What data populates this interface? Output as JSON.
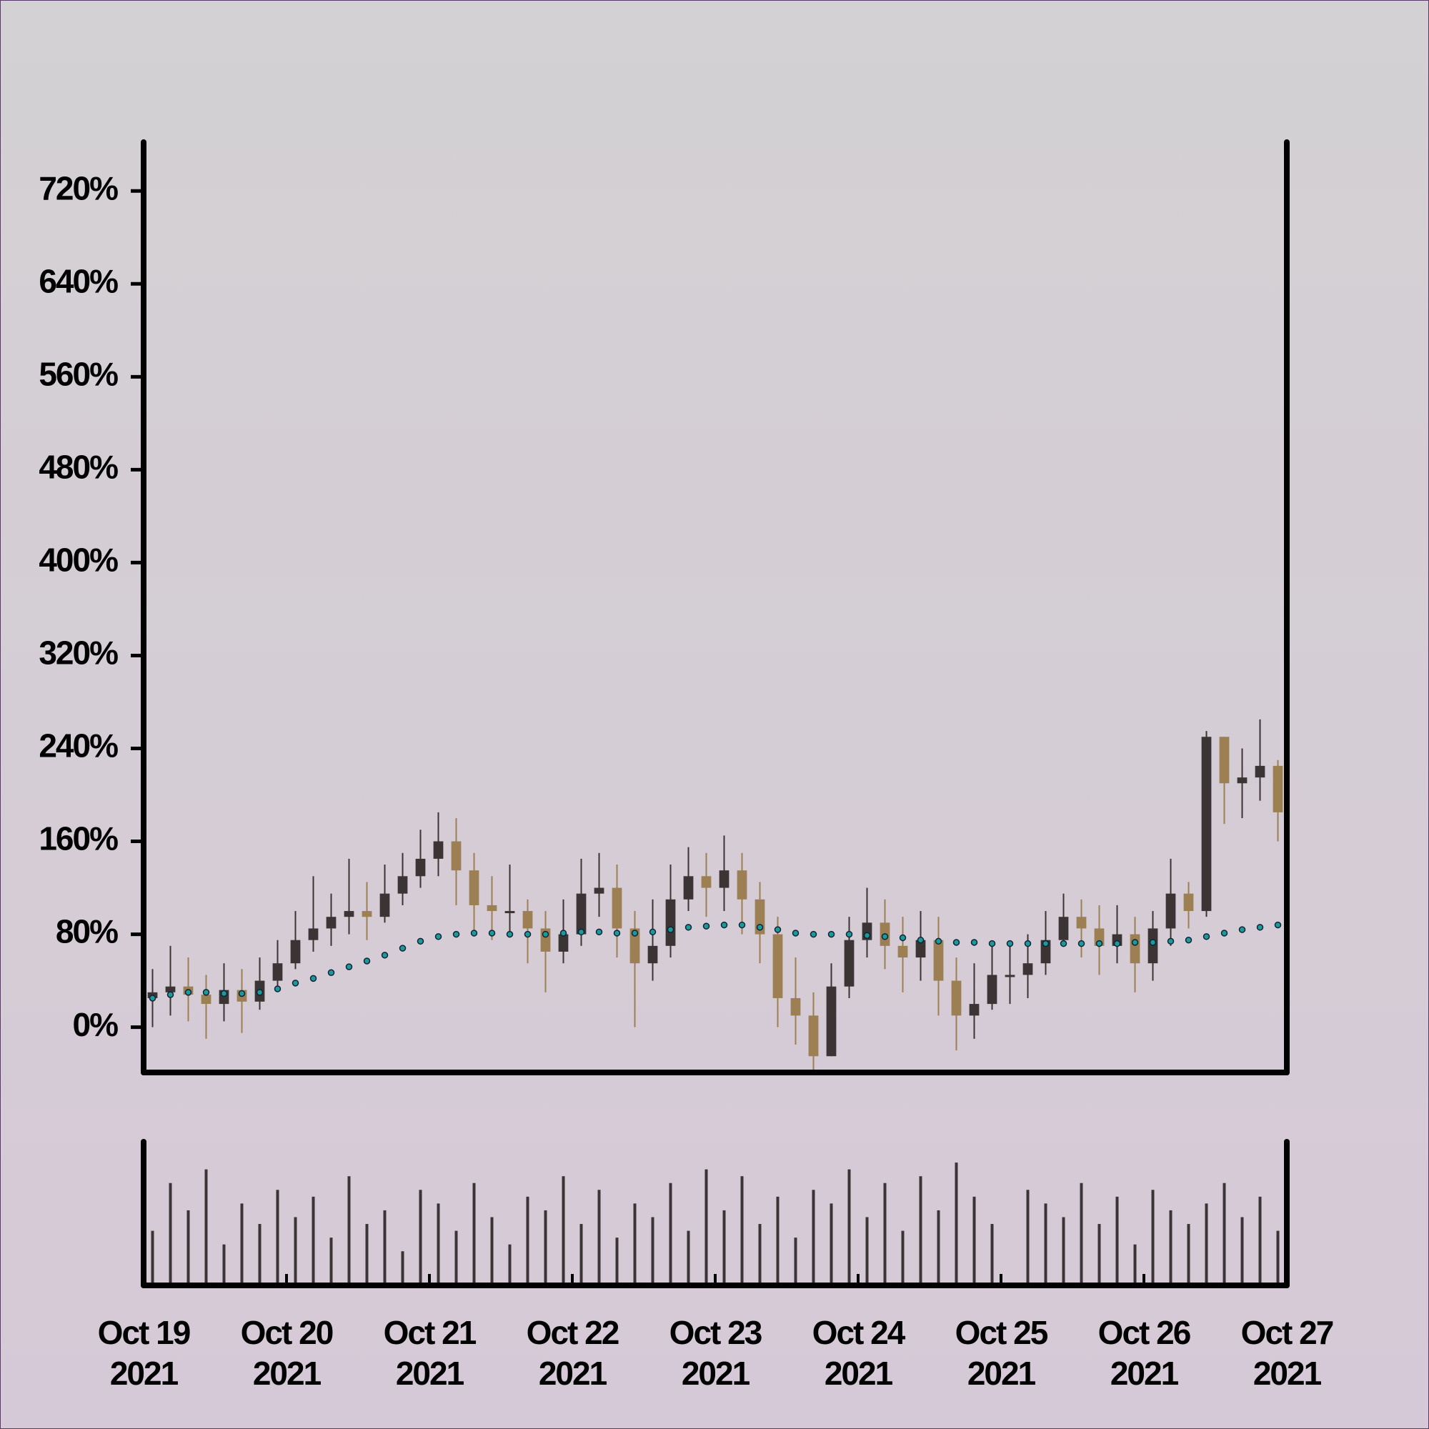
{
  "chart_data": {
    "type": "candlestick",
    "x": [
      "2021-10-19T01:30",
      "2021-10-19T04:30",
      "2021-10-19T07:30",
      "2021-10-19T10:30",
      "2021-10-19T13:30",
      "2021-10-19T16:30",
      "2021-10-19T19:30",
      "2021-10-19T22:30",
      "2021-10-20T01:30",
      "2021-10-20T04:30",
      "2021-10-20T07:30",
      "2021-10-20T10:30",
      "2021-10-20T13:30",
      "2021-10-20T16:30",
      "2021-10-20T19:30",
      "2021-10-20T22:30",
      "2021-10-21T01:30",
      "2021-10-21T04:30",
      "2021-10-21T07:30",
      "2021-10-21T10:30",
      "2021-10-21T13:30",
      "2021-10-21T16:30",
      "2021-10-21T19:30",
      "2021-10-21T22:30",
      "2021-10-22T01:30",
      "2021-10-22T04:30",
      "2021-10-22T07:30",
      "2021-10-22T10:30",
      "2021-10-22T13:30",
      "2021-10-22T16:30",
      "2021-10-22T19:30",
      "2021-10-22T22:30",
      "2021-10-23T01:30",
      "2021-10-23T04:30",
      "2021-10-23T07:30",
      "2021-10-23T10:30",
      "2021-10-23T13:30",
      "2021-10-23T16:30",
      "2021-10-23T19:30",
      "2021-10-23T22:30",
      "2021-10-24T01:30",
      "2021-10-24T04:30",
      "2021-10-24T07:30",
      "2021-10-24T10:30",
      "2021-10-24T13:30",
      "2021-10-24T16:30",
      "2021-10-24T19:30",
      "2021-10-24T22:30",
      "2021-10-25T01:30",
      "2021-10-25T04:30",
      "2021-10-25T07:30",
      "2021-10-25T10:30",
      "2021-10-25T13:30",
      "2021-10-25T16:30",
      "2021-10-25T19:30",
      "2021-10-25T22:30",
      "2021-10-26T01:30",
      "2021-10-26T04:30",
      "2021-10-26T07:30",
      "2021-10-26T10:30",
      "2021-10-26T13:30",
      "2021-10-26T16:30",
      "2021-10-26T19:30",
      "2021-10-26T22:30"
    ],
    "open": [
      25,
      30,
      35,
      28,
      20,
      32,
      22,
      40,
      55,
      75,
      85,
      95,
      100,
      95,
      115,
      130,
      145,
      160,
      135,
      105,
      100,
      100,
      85,
      65,
      80,
      115,
      120,
      85,
      55,
      70,
      110,
      130,
      120,
      135,
      110,
      80,
      25,
      10,
      -25,
      35,
      75,
      90,
      70,
      60,
      75,
      40,
      10,
      20,
      45,
      45,
      55,
      75,
      95,
      85,
      70,
      80,
      55,
      85,
      115,
      100,
      250,
      210,
      215,
      225
    ],
    "high": [
      50,
      70,
      60,
      45,
      55,
      50,
      60,
      75,
      100,
      130,
      115,
      145,
      125,
      140,
      150,
      170,
      185,
      180,
      150,
      130,
      140,
      110,
      100,
      110,
      145,
      150,
      140,
      100,
      110,
      140,
      155,
      150,
      165,
      150,
      125,
      95,
      60,
      30,
      55,
      95,
      120,
      110,
      95,
      100,
      95,
      60,
      55,
      70,
      70,
      80,
      100,
      115,
      110,
      105,
      105,
      95,
      100,
      145,
      125,
      255,
      250,
      240,
      265,
      230
    ],
    "low": [
      0,
      10,
      5,
      -10,
      5,
      -5,
      15,
      35,
      50,
      65,
      70,
      80,
      75,
      90,
      105,
      120,
      130,
      105,
      80,
      75,
      80,
      55,
      30,
      55,
      70,
      95,
      60,
      0,
      40,
      60,
      100,
      95,
      100,
      80,
      55,
      0,
      -15,
      -38,
      -25,
      25,
      60,
      50,
      30,
      40,
      10,
      -20,
      -10,
      15,
      20,
      25,
      45,
      70,
      60,
      45,
      55,
      30,
      40,
      70,
      85,
      95,
      175,
      180,
      195,
      160
    ],
    "close": [
      30,
      35,
      28,
      20,
      32,
      22,
      40,
      55,
      75,
      85,
      95,
      100,
      95,
      115,
      130,
      145,
      160,
      135,
      105,
      100,
      100,
      85,
      65,
      80,
      115,
      120,
      85,
      55,
      70,
      110,
      130,
      120,
      135,
      110,
      80,
      25,
      10,
      -25,
      35,
      75,
      90,
      70,
      60,
      75,
      40,
      10,
      20,
      45,
      45,
      55,
      75,
      95,
      85,
      70,
      80,
      55,
      85,
      115,
      100,
      250,
      210,
      215,
      225,
      185
    ],
    "up_color": "#3b3434",
    "down_color": "#9c7f52",
    "moving_average": {
      "color": "#1a9a9a",
      "values": [
        25,
        28,
        30,
        30,
        29,
        29,
        30,
        33,
        38,
        42,
        47,
        52,
        57,
        62,
        68,
        74,
        78,
        80,
        81,
        81,
        80,
        80,
        80,
        81,
        82,
        82,
        81,
        81,
        82,
        84,
        86,
        87,
        88,
        88,
        86,
        84,
        81,
        80,
        80,
        80,
        79,
        78,
        77,
        75,
        74,
        73,
        73,
        72,
        72,
        72,
        72,
        72,
        72,
        72,
        72,
        73,
        73,
        74,
        75,
        78,
        81,
        84,
        86,
        88
      ]
    },
    "volume": {
      "color": "#3b3434",
      "ylim": [
        0,
        100
      ],
      "values": [
        40,
        75,
        55,
        85,
        30,
        60,
        45,
        70,
        50,
        65,
        35,
        80,
        45,
        55,
        25,
        70,
        60,
        40,
        75,
        50,
        30,
        65,
        55,
        80,
        45,
        70,
        35,
        60,
        50,
        75,
        40,
        85,
        55,
        80,
        45,
        65,
        35,
        70,
        60,
        85,
        50,
        75,
        40,
        80,
        55,
        90,
        65,
        45,
        0,
        70,
        60,
        50,
        75,
        45,
        65,
        30,
        70,
        55,
        45,
        60,
        75,
        50,
        65,
        40
      ]
    },
    "xlim": [
      "2021-10-19T00:00",
      "2021-10-27T00:00"
    ],
    "xticks": [
      {
        "value": "2021-10-19T00:00",
        "label": "Oct 19\n2021"
      },
      {
        "value": "2021-10-20T00:00",
        "label": "Oct 20\n2021"
      },
      {
        "value": "2021-10-21T00:00",
        "label": "Oct 21\n2021"
      },
      {
        "value": "2021-10-22T00:00",
        "label": "Oct 22\n2021"
      },
      {
        "value": "2021-10-23T00:00",
        "label": "Oct 23\n2021"
      },
      {
        "value": "2021-10-24T00:00",
        "label": "Oct 24\n2021"
      },
      {
        "value": "2021-10-25T00:00",
        "label": "Oct 25\n2021"
      },
      {
        "value": "2021-10-26T00:00",
        "label": "Oct 26\n2021"
      },
      {
        "value": "2021-10-27T00:00",
        "label": "Oct 27\n2021"
      }
    ],
    "ylim": [
      -39,
      762
    ],
    "yticks": [
      {
        "value": 0,
        "label": "0%"
      },
      {
        "value": 80,
        "label": "80%"
      },
      {
        "value": 160,
        "label": "160%"
      },
      {
        "value": 240,
        "label": "240%"
      },
      {
        "value": 320,
        "label": "320%"
      },
      {
        "value": 400,
        "label": "400%"
      },
      {
        "value": 480,
        "label": "480%"
      },
      {
        "value": 560,
        "label": "560%"
      },
      {
        "value": 640,
        "label": "640%"
      },
      {
        "value": 720,
        "label": "720%"
      }
    ]
  }
}
